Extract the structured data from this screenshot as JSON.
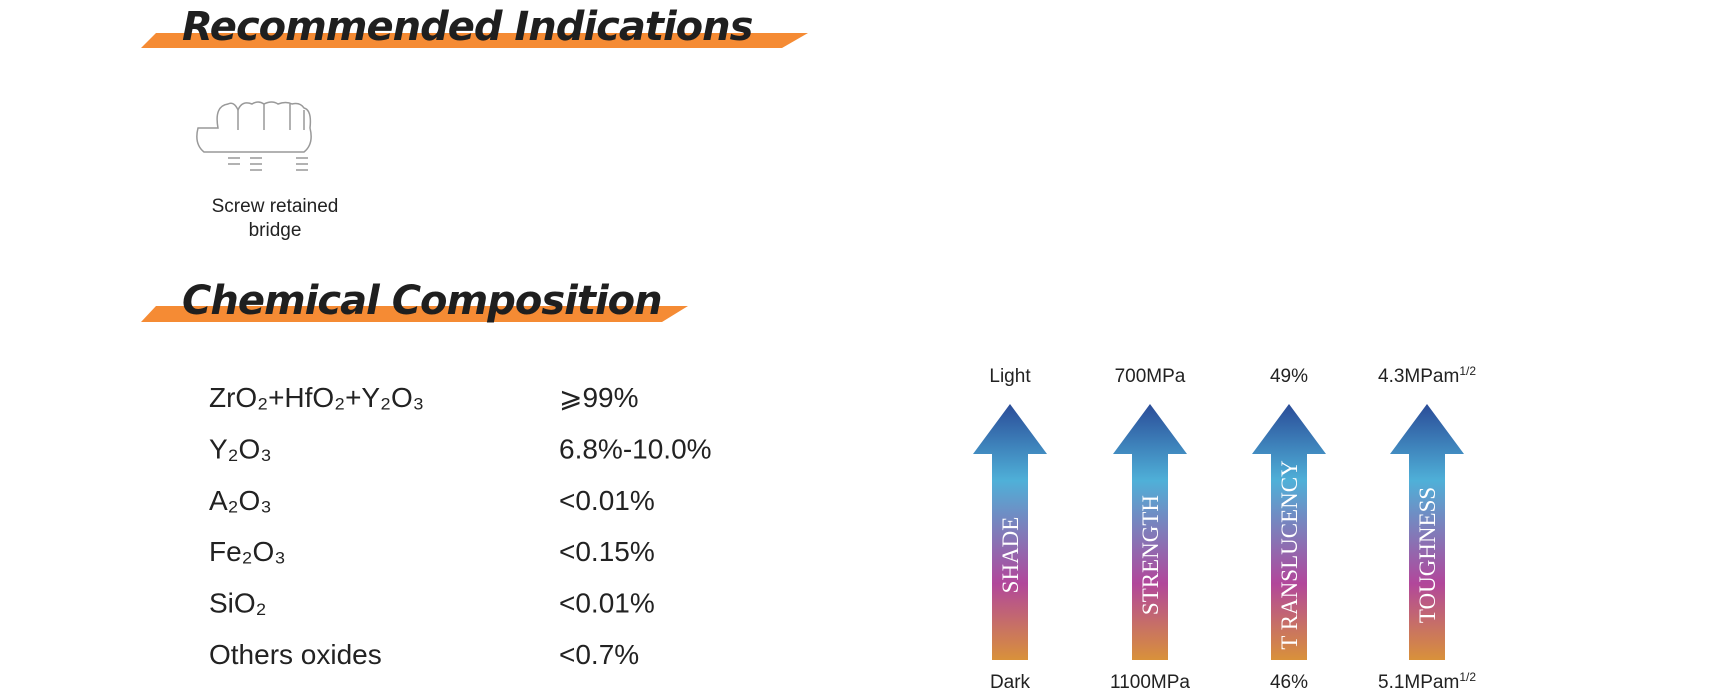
{
  "indications": {
    "title": "Recommended Indications",
    "items": [
      {
        "label_lines": [
          "Screw retained",
          "bridge"
        ]
      }
    ]
  },
  "composition": {
    "title": "Chemical Composition",
    "rows": [
      {
        "formula": "ZrO₂+HfO₂+Y₂O₃",
        "value": "⩾99%"
      },
      {
        "formula": "Y₂O₃",
        "value": "6.8%-10.0%"
      },
      {
        "formula": "A₂O₃",
        "value": "<0.01%"
      },
      {
        "formula": "Fe₂O₃",
        "value": "<0.15%"
      },
      {
        "formula": "SiO₂",
        "value": "<0.01%"
      },
      {
        "formula": "Others oxides",
        "value": "<0.7%"
      }
    ]
  },
  "properties": [
    {
      "name": "SHADE",
      "top": "Light",
      "bottom": "Dark"
    },
    {
      "name": "STRENGTH",
      "top": "700MPa",
      "bottom": "1100MPa"
    },
    {
      "name": "T RANSLUCENCY",
      "top": "49%",
      "bottom": "46%"
    },
    {
      "name": "TOUGHNESS",
      "top": "4.3MPam",
      "top_sup": "1/2",
      "bottom": "5.1MPam",
      "bottom_sup": "1/2"
    }
  ]
}
